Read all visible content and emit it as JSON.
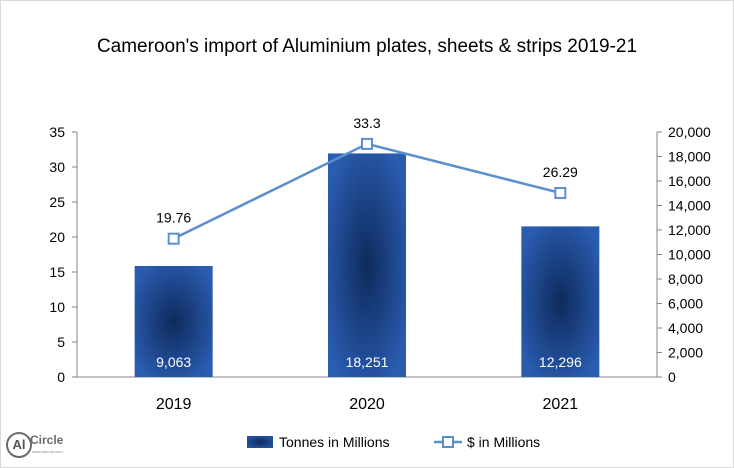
{
  "chart_data": {
    "type": "bar+line",
    "title": "Cameroon's import of Aluminium plates, sheets & strips 2019-21",
    "categories": [
      "2019",
      "2020",
      "2021"
    ],
    "series": [
      {
        "name": "Tonnes in Millions",
        "type": "bar",
        "axis": "right",
        "values": [
          9063,
          18251,
          12296
        ],
        "labels": [
          "9,063",
          "18,251",
          "12,296"
        ],
        "color": "#1f4e9a"
      },
      {
        "name": "$ in Millions",
        "type": "line",
        "axis": "left",
        "values": [
          19.76,
          33.3,
          26.29
        ],
        "labels": [
          "19.76",
          "33.3",
          "26.29"
        ],
        "color": "#5b8fd0"
      }
    ],
    "y_left": {
      "ylim": [
        0,
        35
      ],
      "ticks": [
        0,
        5,
        10,
        15,
        20,
        25,
        30,
        35
      ],
      "tick_labels": [
        "0",
        "5",
        "10",
        "15",
        "20",
        "25",
        "30",
        "35"
      ]
    },
    "y_right": {
      "ylim": [
        0,
        20000
      ],
      "ticks": [
        0,
        2000,
        4000,
        6000,
        8000,
        10000,
        12000,
        14000,
        16000,
        18000,
        20000
      ],
      "tick_labels": [
        "0",
        "2,000",
        "4,000",
        "6,000",
        "8,000",
        "10,000",
        "12,000",
        "14,000",
        "16,000",
        "18,000",
        "20,000"
      ]
    },
    "grid": false,
    "legend": "bottom"
  },
  "logo": {
    "mark": "Al",
    "name": "Circle",
    "url": "www.alcircle.com"
  }
}
